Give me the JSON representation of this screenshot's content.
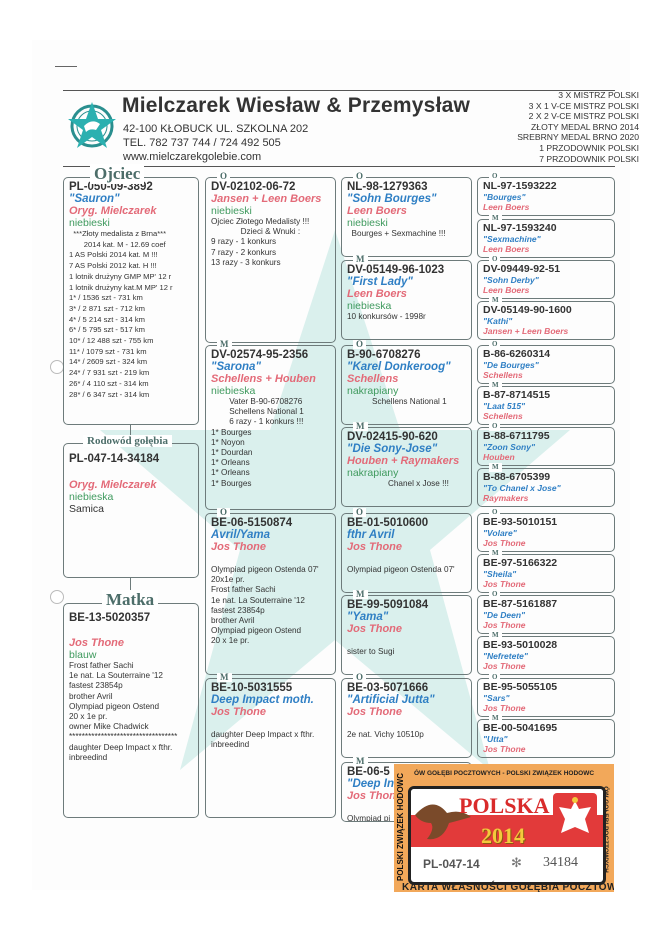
{
  "header": {
    "title": "Mielczarek Wiesław & Przemysław",
    "address": "42-100 KŁOBUCK UL. SZKOLNA 202",
    "phone": "TEL. 782 737 744  /  724 492 505",
    "website": "www.mielczarekgolebie.com",
    "titles": [
      "3  X  MISTRZ POLSKI",
      "3  X  1 V-CE MISTRZ POLSKI",
      "2  X  2 V-CE MISTRZ POLSKI",
      "ZŁOTY MEDAL BRNO 2014",
      "SREBRNY MEDAL BRNO 2020",
      "1 PRZODOWNIK POLSKI",
      "7 PRZODOWNIK POLSKI"
    ]
  },
  "labels": {
    "father": "Ojciec",
    "pedigree": "Rodowód gołębia",
    "mother": "Matka",
    "male": "O",
    "female": "M"
  },
  "subject": {
    "ring": "PL-047-14-34184",
    "breeder": "Oryg. Mielczarek",
    "color": "niebieska",
    "sex": "Samica"
  },
  "father": {
    "ring": "PL-050-09-3892",
    "name": "\"Sauron\"",
    "breeder": "Oryg. Mielczarek",
    "color": "niebieski",
    "notes": "  ***Złoty medalista z Brna***\n       2014 kat. M - 12.69 coef\n1 AS Polski 2014 kat. M !!!\n7 AS Polski 2012 kat. H !!!\n1 lotnik drużyny GMP MP' 12 r\n1 lotnik drużyny kat.M MP' 12 r\n1* / 1536 szt - 731 km\n3* / 2 871 szt - 712 km\n4* / 5 214 szt - 314 km\n6* / 5 795 szt - 517 km\n10* / 12 488 szt - 755 km\n11* / 1079 szt - 731 km\n14* / 2609 szt - 324 km\n24* / 7 931 szt - 219 km\n26* / 4 110 szt - 314 km\n28* / 6 347 szt - 314 km"
  },
  "mother": {
    "ring": "BE-13-5020357",
    "name": "",
    "breeder": "Jos Thone",
    "color": "blauw",
    "notes": "Frost father Sachi\n1e nat. La Souterraine '12\nfastest 23854p\nbrother Avril\nOlympiad pigeon Ostend\n20 x 1e pr.\nowner Mike Chadwick\n**********************************\ndaughter Deep Impact x fthr.\ninbreedind"
  },
  "grandparents": [
    {
      "sex": "O",
      "ring": "DV-02102-06-72",
      "name": "",
      "breeder": "Jansen + Leen Boers",
      "color": "niebieski",
      "notes": "Ojciec Złotego Medalisty !!!\n             Dzieci & Wnuki :\n9 razy - 1 konkurs\n7 razy - 2 konkurs\n13 razy - 3 konkurs"
    },
    {
      "sex": "M",
      "ring": "DV-02574-95-2356",
      "name": "\"Sarona\"",
      "breeder": "Schellens + Houben",
      "color": "niebieska",
      "notes": "        Vater B-90-6708276\n        Schellens National 1\n        6 razy - 1 konkurs !!!\n1* Bourges\n1* Noyon\n1* Dourdan\n1* Orleans\n1* Orleans\n1* Bourges"
    },
    {
      "sex": "O",
      "ring": "BE-06-5150874",
      "name": "Avril/Yama",
      "breeder": "Jos Thone",
      "color": "",
      "notes": "Olympiad pigeon Ostenda 07'\n20x1e pr.\nFrost father Sachi\n1e nat. La Souterraine '12\nfastest 23854p\nbrother Avril\nOlympiad pigeon Ostend\n20 x 1e pr."
    },
    {
      "sex": "M",
      "ring": "BE-10-5031555",
      "name": "Deep Impact moth.",
      "breeder": "Jos Thone",
      "color": "",
      "notes": "daughter Deep Impact x fthr.\ninbreedind"
    }
  ],
  "great_grandparents": [
    {
      "sex": "O",
      "ring": "NL-98-1279363",
      "name": "\"Sohn Bourges\"",
      "breeder": "Leen Boers",
      "color": "niebieski",
      "notes": "  Bourges + Sexmachine !!!"
    },
    {
      "sex": "M",
      "ring": "DV-05149-96-1023",
      "name": "\"First Lady\"",
      "breeder": "Leen Boers",
      "color": "niebieska",
      "notes": "10 konkursów - 1998r"
    },
    {
      "sex": "O",
      "ring": "B-90-6708276",
      "name": "\"Karel Donkeroog\"",
      "breeder": "Schellens",
      "color": "nakrapiany",
      "notes": "           Schellens National 1"
    },
    {
      "sex": "M",
      "ring": "DV-02415-90-620",
      "name": "\"Die Sony-Jose\"",
      "breeder": "Houben + Raymakers",
      "color": "nakrapiany",
      "notes": "                  Chanel x Jose !!!"
    },
    {
      "sex": "O",
      "ring": "BE-01-5010600",
      "name": "fthr Avril",
      "breeder": "Jos Thone",
      "color": "",
      "notes": "Olympiad pigeon Ostenda 07'"
    },
    {
      "sex": "M",
      "ring": "BE-99-5091084",
      "name": "\"Yama\"",
      "breeder": "Jos Thone",
      "color": "",
      "notes": "sister to Sugi"
    },
    {
      "sex": "O",
      "ring": "BE-03-5071666",
      "name": "\"Artificial Jutta\"",
      "breeder": "Jos Thone",
      "color": "",
      "notes": "2e nat. Vichy 10510p"
    },
    {
      "sex": "M",
      "ring": "BE-06-5",
      "name": "\"Deep In",
      "breeder": "Jos Thon",
      "color": "",
      "notes": "Olympiad pi"
    }
  ],
  "gg_grandparents": [
    {
      "sex": "O",
      "ring": "NL-97-1593222",
      "name": "\"Bourges\"",
      "breeder": "Leen Boers"
    },
    {
      "sex": "M",
      "ring": "NL-97-1593240",
      "name": "\"Sexmachine\"",
      "breeder": "Leen Boers"
    },
    {
      "sex": "O",
      "ring": "DV-09449-92-51",
      "name": "\"Sohn Derby\"",
      "breeder": "Leen Boers"
    },
    {
      "sex": "M",
      "ring": "DV-05149-90-1600",
      "name": "\"Kathi\"",
      "breeder": "Jansen + Leen Boers"
    },
    {
      "sex": "O",
      "ring": "B-86-6260314",
      "name": "\"De Bourges\"",
      "breeder": "Schellens"
    },
    {
      "sex": "M",
      "ring": "B-87-8714515",
      "name": "\"Laat 515\"",
      "breeder": "Schellens"
    },
    {
      "sex": "O",
      "ring": "B-88-6711795",
      "name": "\"Zoon Sony\"",
      "breeder": "Houben"
    },
    {
      "sex": "M",
      "ring": "B-88-6705399",
      "name": "\"To Chanel x Jose\"",
      "breeder": "Raymakers"
    },
    {
      "sex": "O",
      "ring": "BE-93-5010151",
      "name": "\"Volare\"",
      "breeder": "Jos Thone"
    },
    {
      "sex": "M",
      "ring": "BE-97-5166322",
      "name": "\"Sheila\"",
      "breeder": "Jos Thone"
    },
    {
      "sex": "O",
      "ring": "BE-87-5161887",
      "name": "\"De Deen\"",
      "breeder": "Jos Thone"
    },
    {
      "sex": "M",
      "ring": "BE-93-5010028",
      "name": "\"Nefretete\"",
      "breeder": "Jos Thone"
    },
    {
      "sex": "O",
      "ring": "BE-95-5055105",
      "name": "\"Sars\"",
      "breeder": "Jos Thone"
    },
    {
      "sex": "M",
      "ring": "BE-00-5041695",
      "name": "\"Utta\"",
      "breeder": "Jos Thone"
    }
  ],
  "stamp": {
    "top_text": "ÓW GOŁĘBI POCZTOWYCH - POLSKI ZWIĄZEK HODOWC",
    "left_text": "POLSKI ZWIĄZEK HODOWC",
    "right_text": "ÓW GOŁĘBI POCZTOWYCH",
    "country": "POLSKA",
    "year": "2014",
    "ring": "PL-047-14",
    "number": "34184",
    "bottom_text": "KARTA WŁASNOŚCI GOŁĘBIA POCZTOWEGO",
    "colors": {
      "background": "#f2a85a",
      "red": "#e23a3a"
    }
  },
  "colors": {
    "ring": "#333333",
    "name": "#2f7fc4",
    "breeder": "#e36a78",
    "color": "#3f9a5e",
    "frame": "#6d7b7b"
  }
}
